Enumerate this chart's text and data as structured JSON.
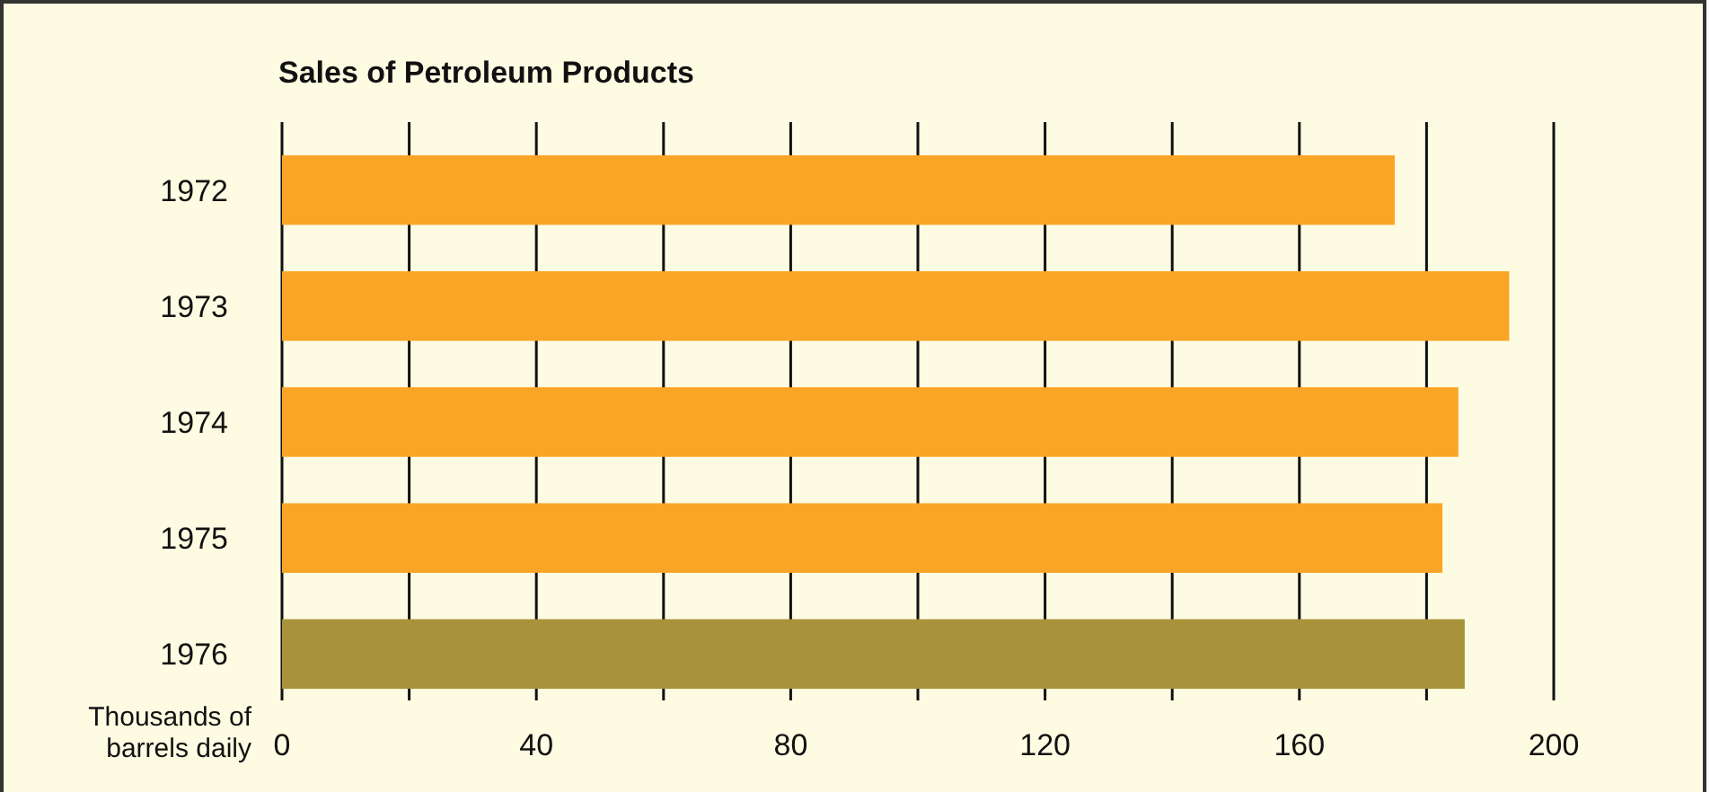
{
  "chart_data": {
    "type": "bar",
    "orientation": "horizontal",
    "title": "Sales of Petroleum Products",
    "xlabel": "Thousands of barrels daily",
    "categories": [
      "1972",
      "1973",
      "1974",
      "1975",
      "1976"
    ],
    "values": [
      175,
      193,
      185,
      182.5,
      186
    ],
    "colors": [
      "#fba526",
      "#fba526",
      "#fba526",
      "#fba526",
      "#a8923a"
    ],
    "xlim": [
      0,
      200
    ],
    "xticks": [
      0,
      {
        "value": 20,
        "label": null
      },
      40,
      {
        "value": 60,
        "label": null
      },
      80,
      {
        "value": 100,
        "label": null
      },
      120,
      {
        "value": 140,
        "label": null
      },
      160,
      {
        "value": 180,
        "label": null
      },
      200
    ],
    "grid": "x"
  }
}
